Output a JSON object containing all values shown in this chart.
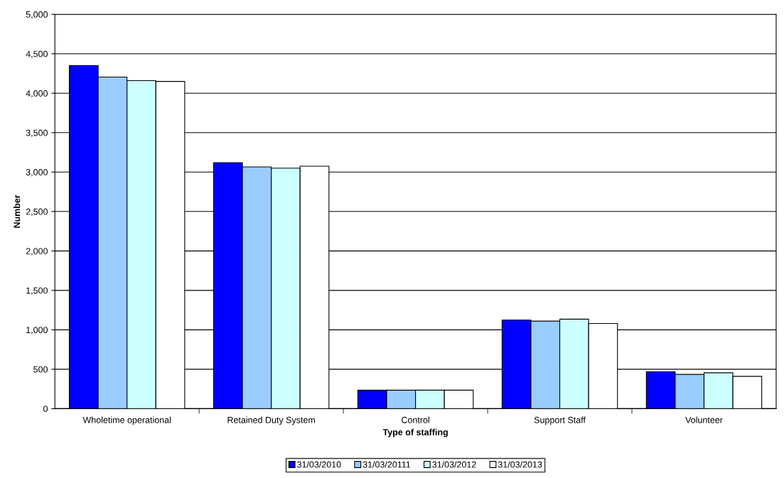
{
  "chart_data": {
    "type": "bar",
    "xlabel": "Type of staffing",
    "ylabel": "Number",
    "categories": [
      "Wholetime operational",
      "Retained Duty System",
      "Control",
      "Support Staff",
      "Volunteer"
    ],
    "series": [
      {
        "name": "31/03/2010",
        "color": "#0000ff",
        "values": [
          4350,
          3120,
          235,
          1125,
          470
        ]
      },
      {
        "name": "31/03/20111",
        "color": "#99ccff",
        "values": [
          4205,
          3065,
          235,
          1110,
          435
        ]
      },
      {
        "name": "31/03/2012",
        "color": "#ccffff",
        "values": [
          4160,
          3050,
          235,
          1135,
          455
        ]
      },
      {
        "name": "31/03/2013",
        "color": "#ffffff",
        "values": [
          4150,
          3075,
          235,
          1080,
          410
        ]
      }
    ],
    "ylim": [
      0,
      5000
    ],
    "yticks": [
      {
        "value": 0,
        "label": "0"
      },
      {
        "value": 500,
        "label": "500"
      },
      {
        "value": 1000,
        "label": "1,000"
      },
      {
        "value": 1500,
        "label": "1,500"
      },
      {
        "value": 2000,
        "label": "2,000"
      },
      {
        "value": 2500,
        "label": "2,500"
      },
      {
        "value": 3000,
        "label": "3,000"
      },
      {
        "value": 3500,
        "label": "3,500"
      },
      {
        "value": 4000,
        "label": "4,000"
      },
      {
        "value": 4500,
        "label": "4,500"
      },
      {
        "value": 5000,
        "label": "5,000"
      }
    ],
    "grid": "y",
    "legend": "bottom"
  }
}
